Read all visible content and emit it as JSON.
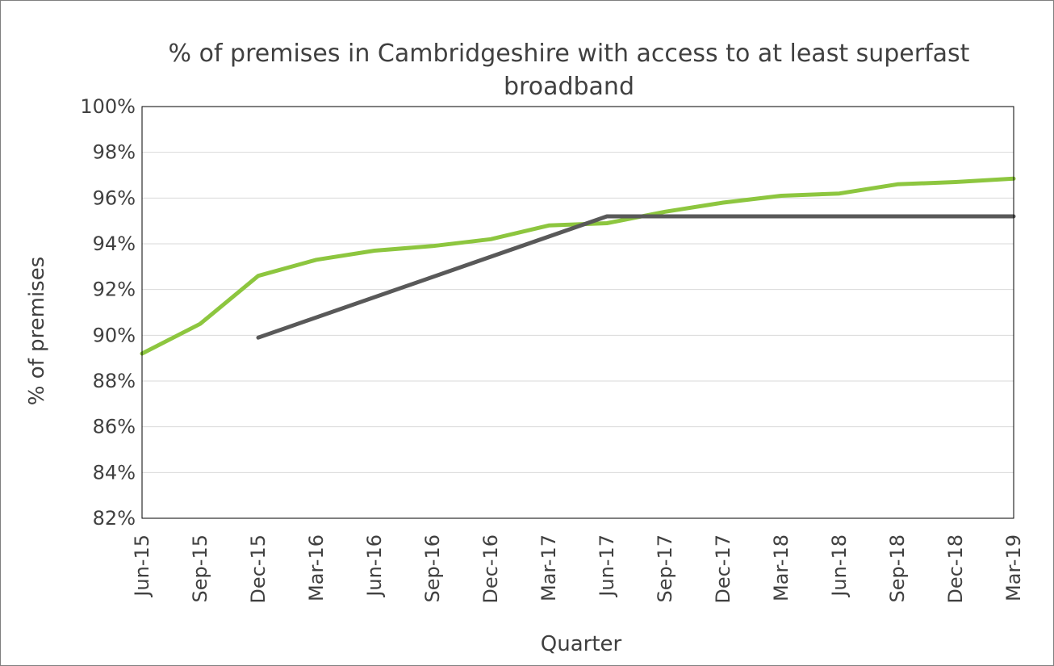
{
  "chart_data": {
    "type": "line",
    "title_lines": [
      "% of premises in Cambridgeshire with access to at least superfast",
      "broadband"
    ],
    "xlabel": "Quarter",
    "ylabel": "% of premises",
    "categories": [
      "Jun-15",
      "Sep-15",
      "Dec-15",
      "Mar-16",
      "Jun-16",
      "Sep-16",
      "Dec-16",
      "Mar-17",
      "Jun-17",
      "Sep-17",
      "Dec-17",
      "Mar-18",
      "Jun-18",
      "Sep-18",
      "Dec-18",
      "Mar-19"
    ],
    "ylim": [
      82,
      100
    ],
    "yticks": [
      82,
      84,
      86,
      88,
      90,
      92,
      94,
      96,
      98,
      100
    ],
    "ytick_labels": [
      "82%",
      "84%",
      "86%",
      "88%",
      "90%",
      "92%",
      "94%",
      "96%",
      "98%",
      "100%"
    ],
    "grid": true,
    "legend": "none",
    "series": [
      {
        "color": "#8dc63f",
        "values": [
          89.2,
          90.5,
          92.6,
          93.3,
          93.7,
          93.9,
          94.2,
          94.8,
          94.9,
          95.4,
          95.8,
          96.1,
          96.2,
          96.6,
          96.7,
          96.85
        ]
      },
      {
        "color": "#595959",
        "values": [
          null,
          null,
          89.9,
          null,
          null,
          null,
          null,
          null,
          95.2,
          95.2,
          95.2,
          95.2,
          95.2,
          95.2,
          95.2,
          95.2
        ]
      }
    ]
  }
}
